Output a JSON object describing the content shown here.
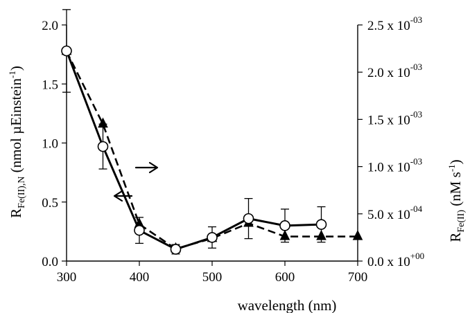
{
  "chart_data": {
    "type": "line",
    "xlabel": "wavelength (nm)",
    "ylabel_left": {
      "main": "R",
      "sub": "Fe(II),N",
      "rest": " (nmol µEinstein",
      "sup": "-1",
      "close": ")"
    },
    "ylabel_right": {
      "main": "R",
      "sub": "Fe(II)",
      "rest": " (nM s",
      "sup": "-1",
      "close": ")"
    },
    "x_ticks": [
      "300",
      "400",
      "500",
      "600",
      "700"
    ],
    "y_left_ticks": [
      "0.0",
      "0.5",
      "1.0",
      "1.5",
      "2.0"
    ],
    "y_right_ticks": [
      {
        "mantissa": "0.0 x 10",
        "exp": "+00"
      },
      {
        "mantissa": "5.0 x 10",
        "exp": "-04"
      },
      {
        "mantissa": "1.0 x 10",
        "exp": "-03"
      },
      {
        "mantissa": "1.5 x 10",
        "exp": "-03"
      },
      {
        "mantissa": "2.0 x 10",
        "exp": "-03"
      },
      {
        "mantissa": "2.5 x 10",
        "exp": "-03"
      }
    ],
    "xlim": [
      300,
      700
    ],
    "ylim_left": [
      0,
      2.0
    ],
    "ylim_right": [
      0,
      0.0025
    ],
    "series": [
      {
        "axis": "left",
        "marker": "open-circle",
        "line": "solid",
        "x": [
          300,
          350,
          400,
          450,
          500,
          550,
          600,
          650
        ],
        "y": [
          1.78,
          0.97,
          0.26,
          0.1,
          0.2,
          0.36,
          0.3,
          0.31
        ],
        "yerr": [
          0.35,
          0.19,
          0.11,
          0.04,
          0.09,
          0.17,
          0.14,
          0.15
        ]
      },
      {
        "axis": "right",
        "marker": "filled-triangle",
        "line": "dashed",
        "x": [
          300,
          350,
          400,
          450,
          500,
          550,
          600,
          650,
          700
        ],
        "y": [
          0.00222,
          0.00145,
          0.00039,
          0.00013,
          0.00024,
          0.0004,
          0.00026,
          0.00026,
          0.00026
        ]
      }
    ]
  }
}
